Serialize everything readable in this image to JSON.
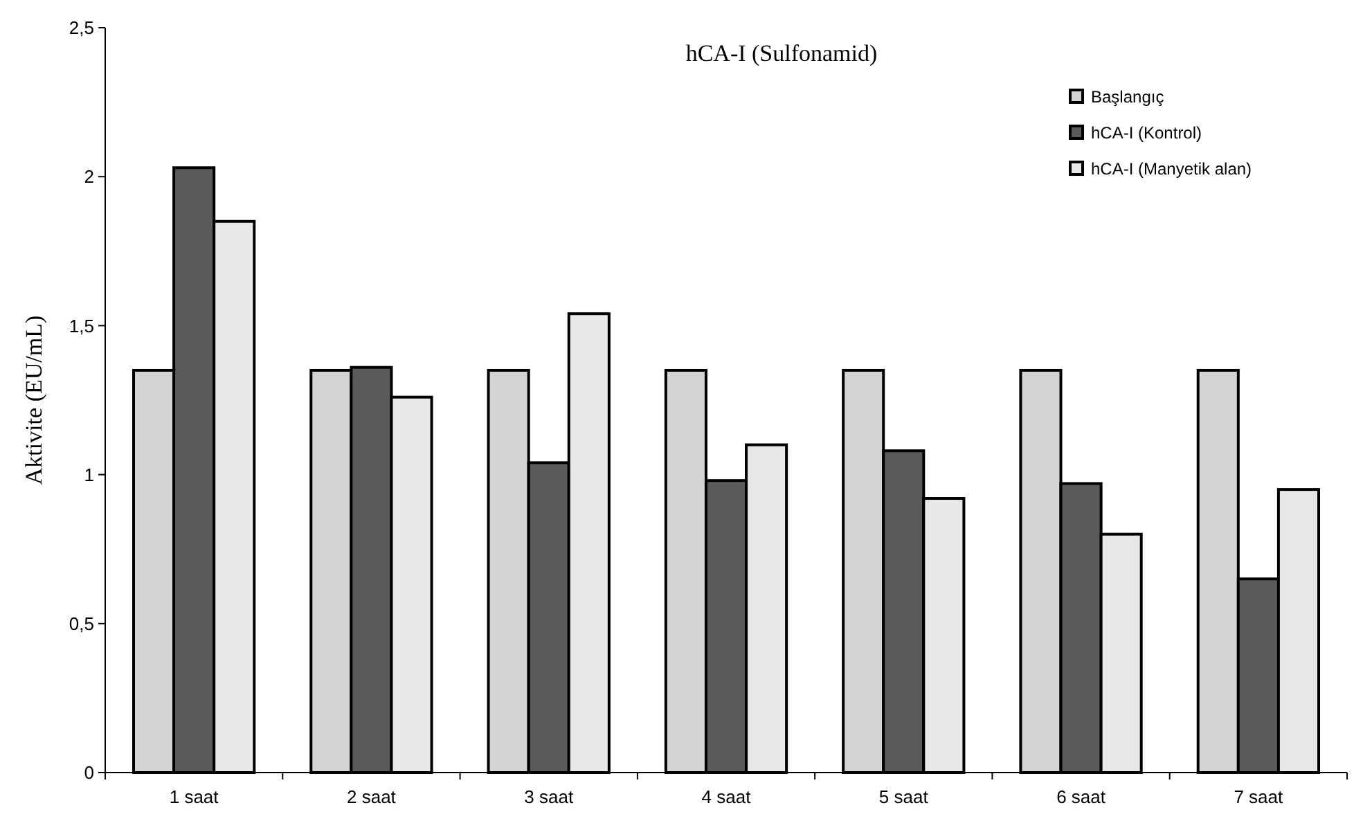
{
  "chart_data": {
    "type": "bar",
    "title": "hCA-I (Sulfonamid)",
    "ylabel": "Aktivite (EU/mL)",
    "categories": [
      "1 saat",
      "2 saat",
      "3 saat",
      "4 saat",
      "5 saat",
      "6 saat",
      "7 saat"
    ],
    "series": [
      {
        "name": "Başlangıç",
        "color": "#d4d4d4",
        "values": [
          1.35,
          1.35,
          1.35,
          1.35,
          1.35,
          1.35,
          1.35
        ]
      },
      {
        "name": "hCA-I (Kontrol)",
        "color": "#5a5a5a",
        "values": [
          2.03,
          1.36,
          1.04,
          0.98,
          1.08,
          0.97,
          0.65
        ]
      },
      {
        "name": "hCA-I (Manyetik alan)",
        "color": "#e8e8e8",
        "values": [
          1.85,
          1.26,
          1.54,
          1.1,
          0.92,
          0.8,
          0.95
        ]
      }
    ],
    "ylim": [
      0,
      2.5
    ],
    "yticks": [
      0,
      {
        "value": 0.5,
        "label": "0,5"
      },
      1,
      {
        "value": 1.5,
        "label": "1,5"
      },
      2,
      {
        "value": 2.5,
        "label": "2,5"
      }
    ],
    "grid": false,
    "legend": "top right"
  }
}
